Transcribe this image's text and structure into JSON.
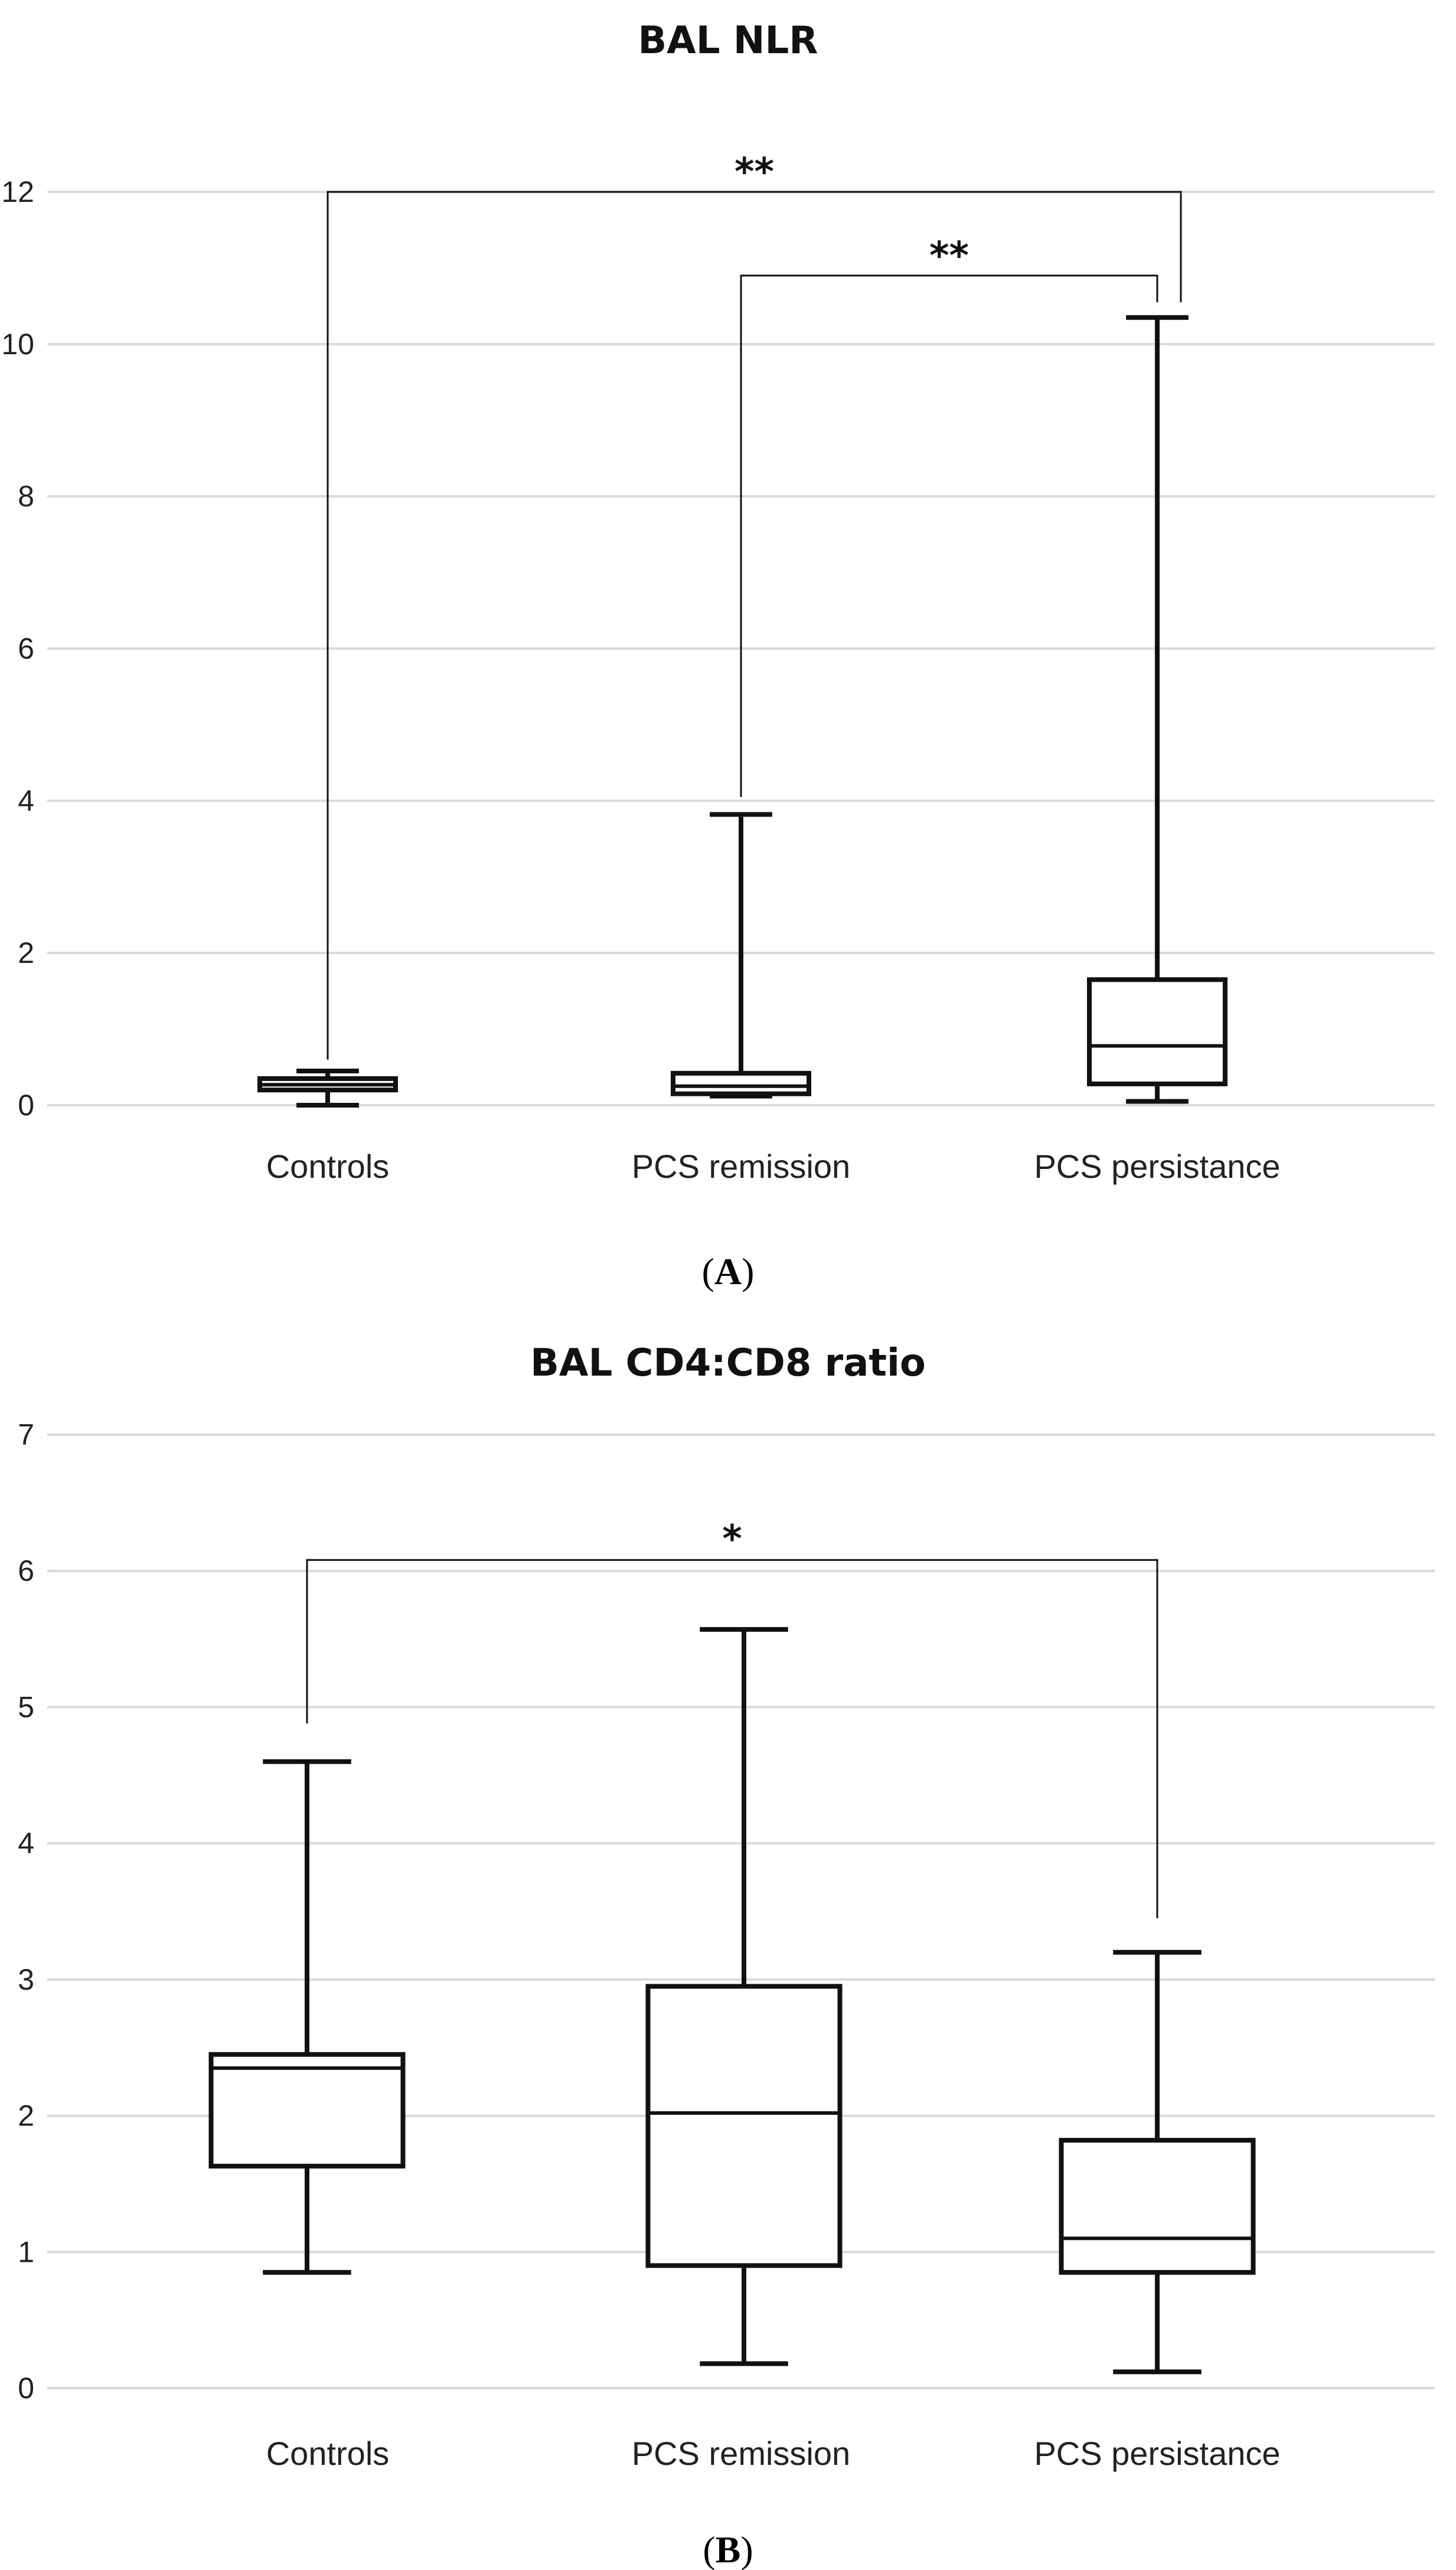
{
  "chart_data": [
    {
      "panel": "A",
      "type": "box",
      "title": "BAL NLR",
      "xlabel": "",
      "ylabel": "",
      "ylim": [
        0,
        12
      ],
      "yticks": [
        "0",
        "2",
        "4",
        "6",
        "8",
        "10",
        "12"
      ],
      "grid": true,
      "categories": [
        "Controls",
        "PCS remission",
        "PCS persistance"
      ],
      "boxes": [
        {
          "min": 0.0,
          "q1": 0.2,
          "median": 0.27,
          "q3": 0.35,
          "max": 0.45
        },
        {
          "min": 0.12,
          "q1": 0.15,
          "median": 0.25,
          "q3": 0.42,
          "max": 3.82
        },
        {
          "min": 0.05,
          "q1": 0.28,
          "median": 0.78,
          "q3": 1.65,
          "max": 10.35
        }
      ],
      "significance": [
        {
          "from": "Controls",
          "to": "PCS persistance",
          "label": "**"
        },
        {
          "from": "PCS remission",
          "to": "PCS persistance",
          "label": "**"
        }
      ]
    },
    {
      "panel": "B",
      "type": "box",
      "title": "BAL CD4:CD8 ratio",
      "xlabel": "",
      "ylabel": "",
      "ylim": [
        0,
        7
      ],
      "yticks": [
        "0",
        "1",
        "2",
        "3",
        "4",
        "5",
        "6",
        "7"
      ],
      "grid": true,
      "categories": [
        "Controls",
        "PCS remission",
        "PCS persistance"
      ],
      "boxes": [
        {
          "min": 0.85,
          "q1": 1.63,
          "median": 2.35,
          "q3": 2.45,
          "max": 4.6
        },
        {
          "min": 0.18,
          "q1": 0.9,
          "median": 2.02,
          "q3": 2.95,
          "max": 5.57
        },
        {
          "min": 0.12,
          "q1": 0.85,
          "median": 1.1,
          "q3": 1.82,
          "max": 3.2
        }
      ],
      "significance": [
        {
          "from": "Controls",
          "to": "PCS persistance",
          "label": "*"
        }
      ]
    }
  ],
  "panel_labels": [
    {
      "open": "(",
      "letter": "A",
      "close": ")"
    },
    {
      "open": "(",
      "letter": "B",
      "close": ")"
    }
  ]
}
